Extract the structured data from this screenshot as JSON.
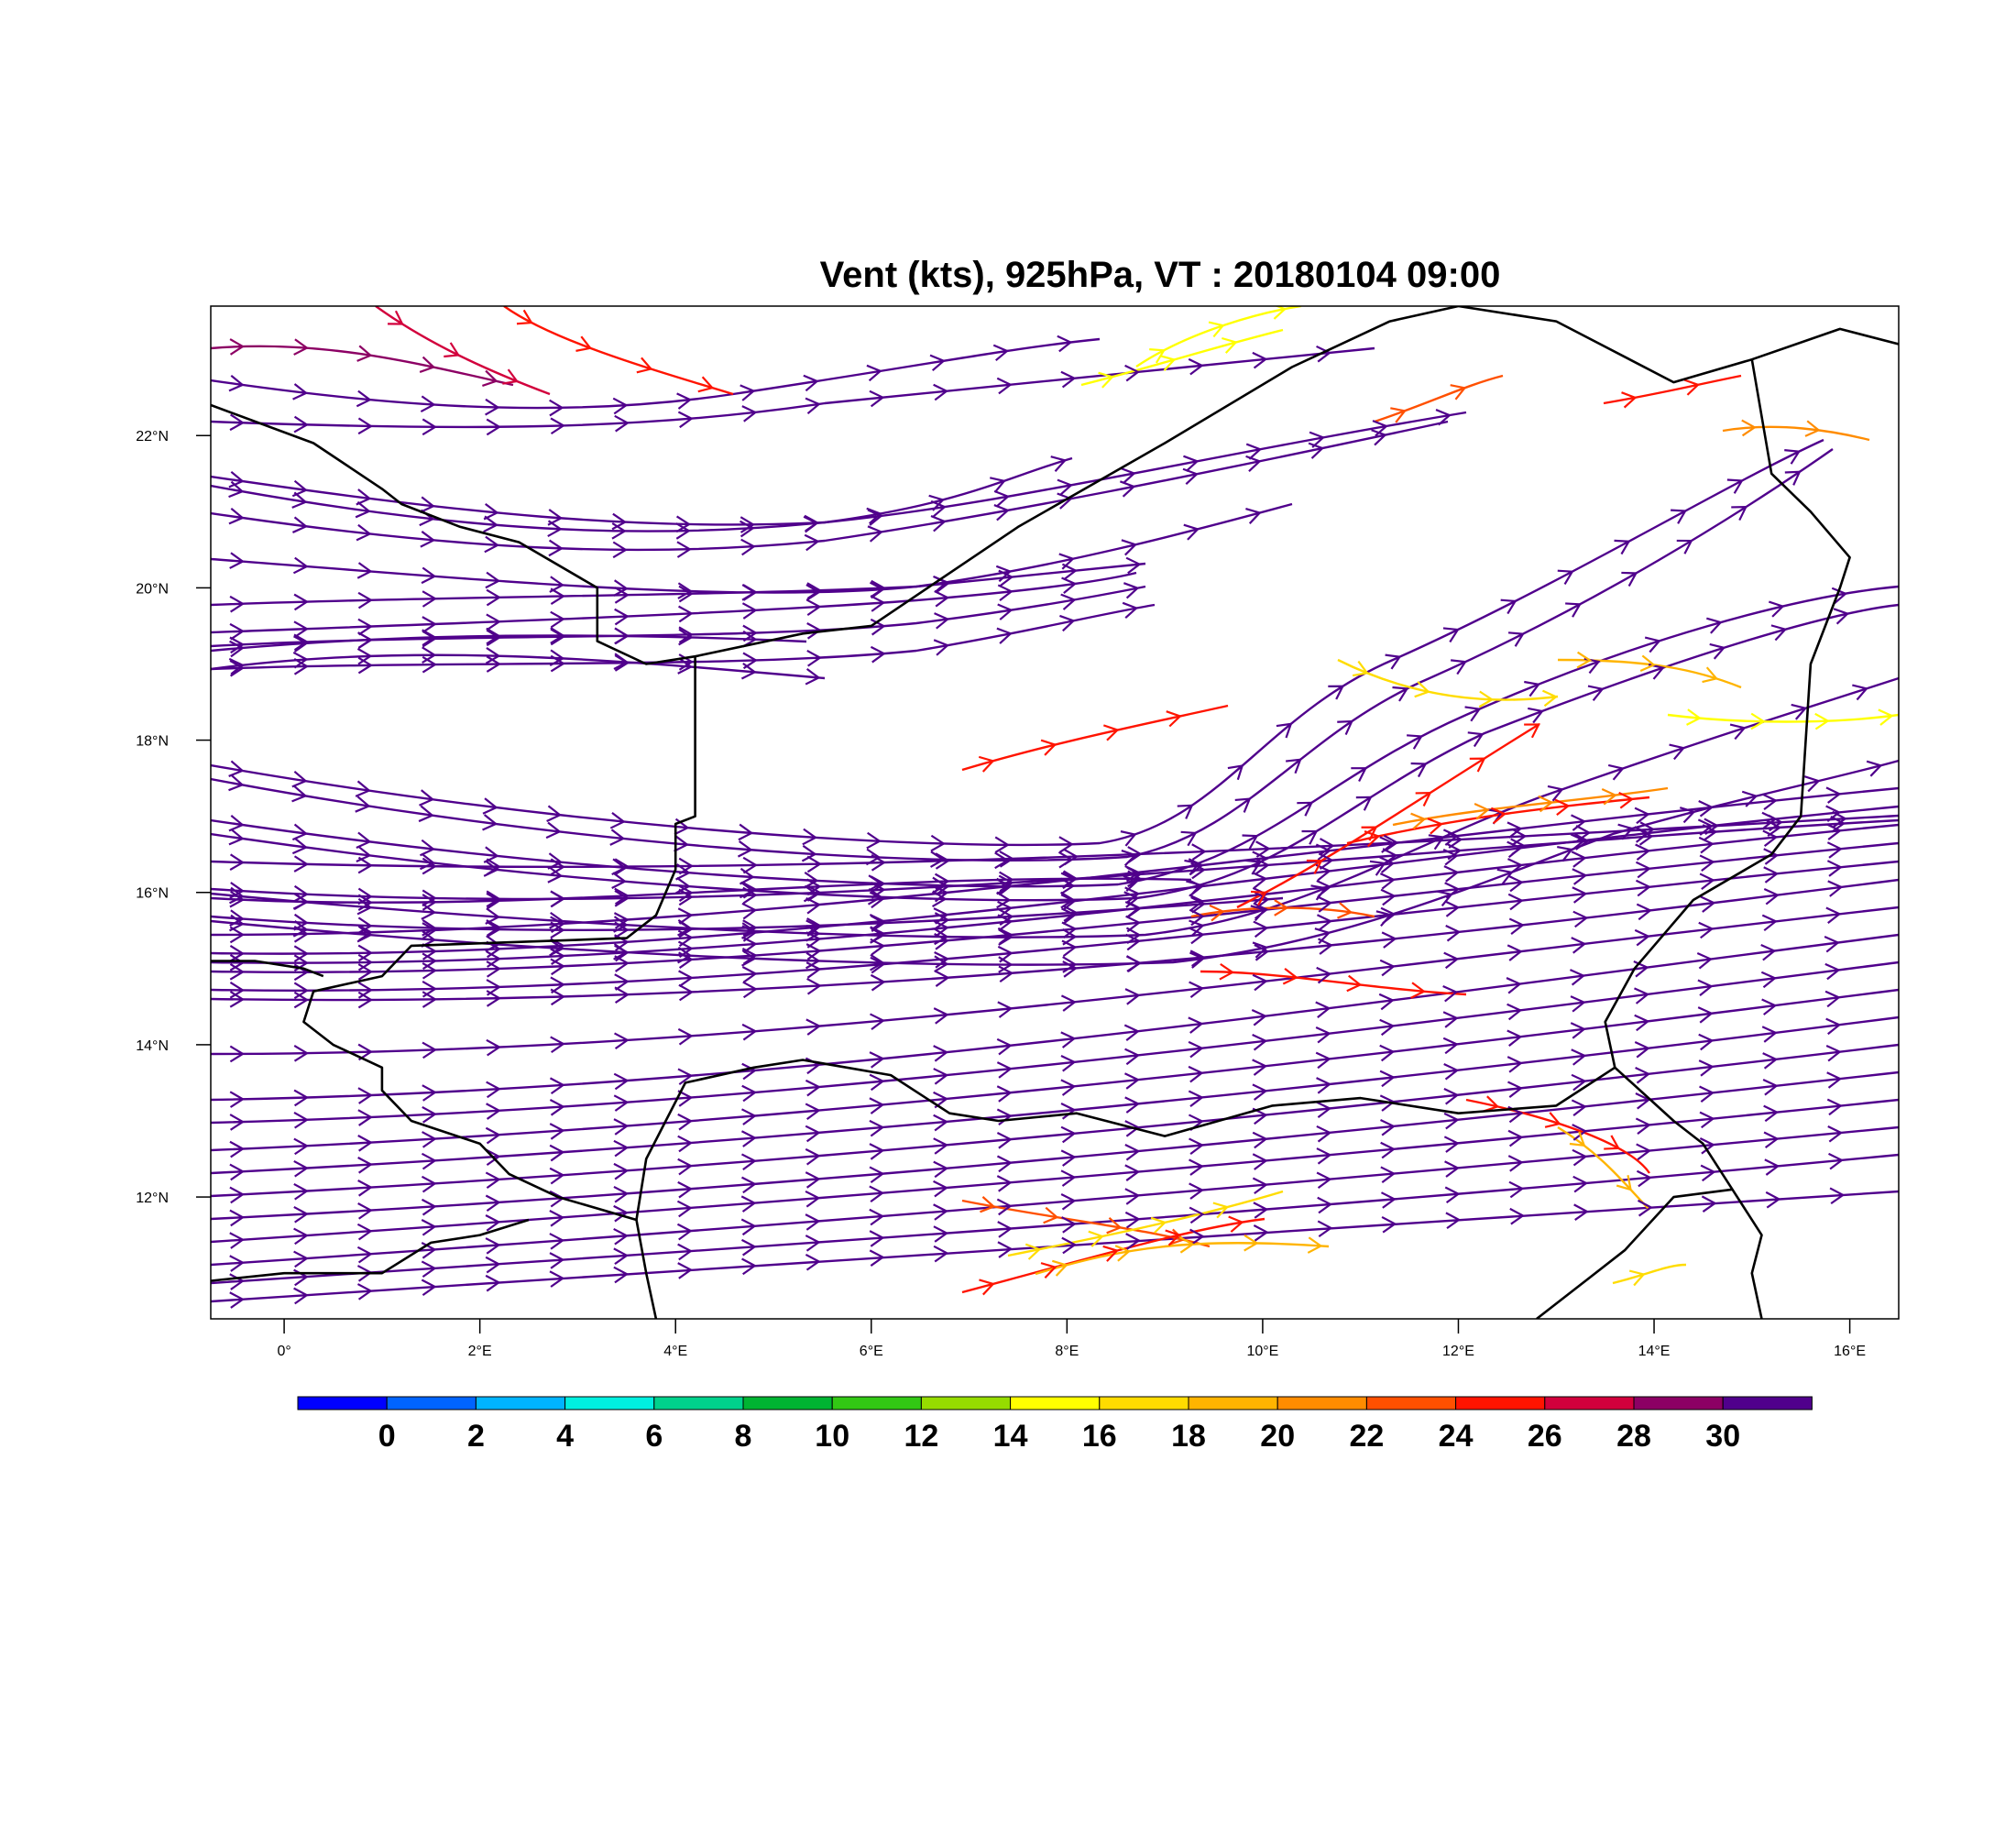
{
  "title": "Vent (kts), 925hPa, VT : 20180104  09:00",
  "map": {
    "lon_range": [
      -0.75,
      16.5
    ],
    "lat_range": [
      10.4,
      23.7
    ],
    "lon_ticks": [
      {
        "lon": 0,
        "label": "0°"
      },
      {
        "lon": 2,
        "label": "2°E"
      },
      {
        "lon": 4,
        "label": "4°E"
      },
      {
        "lon": 6,
        "label": "6°E"
      },
      {
        "lon": 8,
        "label": "8°E"
      },
      {
        "lon": 10,
        "label": "10°E"
      },
      {
        "lon": 12,
        "label": "12°E"
      },
      {
        "lon": 14,
        "label": "14°E"
      },
      {
        "lon": 16,
        "label": "16°E"
      }
    ],
    "lat_ticks": [
      {
        "lat": 22,
        "label": "22°N"
      },
      {
        "lat": 20,
        "label": "20°N"
      },
      {
        "lat": 18,
        "label": "18°N"
      },
      {
        "lat": 16,
        "label": "16°N"
      },
      {
        "lat": 14,
        "label": "14°N"
      },
      {
        "lat": 12,
        "label": "12°N"
      }
    ],
    "borders": [
      [
        [
          -0.75,
          22.4
        ],
        [
          0.3,
          21.9
        ],
        [
          1.0,
          21.3
        ],
        [
          1.2,
          21.1
        ],
        [
          1.8,
          20.8
        ],
        [
          2.4,
          20.6
        ],
        [
          3.2,
          20.0
        ],
        [
          3.2,
          19.3
        ],
        [
          3.7,
          19.0
        ],
        [
          4.2,
          19.1
        ],
        [
          5.3,
          19.4
        ],
        [
          6.0,
          19.5
        ],
        [
          7.5,
          20.8
        ],
        [
          9.0,
          21.9
        ],
        [
          10.3,
          22.9
        ],
        [
          11.3,
          23.5
        ],
        [
          12.0,
          23.7
        ]
      ],
      [
        [
          4.2,
          19.1
        ],
        [
          4.2,
          17.0
        ],
        [
          4.0,
          16.9
        ],
        [
          4.0,
          16.3
        ],
        [
          3.8,
          15.7
        ],
        [
          3.5,
          15.4
        ],
        [
          1.3,
          15.3
        ],
        [
          1.0,
          14.9
        ],
        [
          0.3,
          14.7
        ],
        [
          0.2,
          14.3
        ],
        [
          0.5,
          14.0
        ],
        [
          1.0,
          13.7
        ],
        [
          1.0,
          13.4
        ],
        [
          1.3,
          13.0
        ],
        [
          2.0,
          12.7
        ],
        [
          2.3,
          12.3
        ],
        [
          2.8,
          12.0
        ],
        [
          3.6,
          11.7
        ],
        [
          3.7,
          11.0
        ],
        [
          3.8,
          10.4
        ]
      ],
      [
        [
          -0.75,
          15.1
        ],
        [
          -0.3,
          15.1
        ],
        [
          0.2,
          15.0
        ],
        [
          0.4,
          14.9
        ]
      ],
      [
        [
          3.6,
          11.7
        ],
        [
          3.7,
          12.5
        ],
        [
          4.1,
          13.5
        ],
        [
          4.8,
          13.7
        ],
        [
          5.3,
          13.8
        ],
        [
          6.2,
          13.6
        ],
        [
          6.8,
          13.1
        ],
        [
          7.3,
          13.0
        ],
        [
          8.1,
          13.1
        ],
        [
          9.0,
          12.8
        ],
        [
          10.1,
          13.2
        ],
        [
          11.0,
          13.3
        ],
        [
          12.0,
          13.1
        ],
        [
          13.0,
          13.2
        ],
        [
          13.6,
          13.7
        ]
      ],
      [
        [
          12.0,
          23.7
        ],
        [
          13.0,
          23.5
        ],
        [
          14.2,
          22.7
        ],
        [
          15.0,
          23.0
        ],
        [
          15.9,
          23.4
        ],
        [
          16.5,
          23.2
        ]
      ],
      [
        [
          15.0,
          23.0
        ],
        [
          15.2,
          21.5
        ],
        [
          15.6,
          21.0
        ],
        [
          16.0,
          20.4
        ],
        [
          15.9,
          20.0
        ],
        [
          15.6,
          19.0
        ],
        [
          15.5,
          17.0
        ],
        [
          15.2,
          16.5
        ],
        [
          14.4,
          15.9
        ],
        [
          13.8,
          15.0
        ],
        [
          13.5,
          14.3
        ],
        [
          13.6,
          13.7
        ]
      ],
      [
        [
          13.6,
          13.7
        ],
        [
          14.2,
          13.0
        ],
        [
          14.5,
          12.7
        ],
        [
          14.8,
          12.1
        ],
        [
          15.1,
          11.5
        ],
        [
          15.0,
          11.0
        ],
        [
          15.1,
          10.4
        ]
      ],
      [
        [
          -0.75,
          10.9
        ],
        [
          0.0,
          11.0
        ],
        [
          1.0,
          11.0
        ],
        [
          1.5,
          11.4
        ],
        [
          2.0,
          11.5
        ],
        [
          2.5,
          11.7
        ]
      ],
      [
        [
          14.8,
          12.1
        ],
        [
          14.2,
          12.0
        ],
        [
          13.7,
          11.3
        ],
        [
          13.3,
          10.9
        ],
        [
          12.8,
          10.4
        ]
      ]
    ]
  },
  "colorbar": {
    "labels": [
      "0",
      "2",
      "4",
      "6",
      "8",
      "10",
      "12",
      "14",
      "16",
      "18",
      "20",
      "22",
      "24",
      "26",
      "28",
      "30"
    ],
    "colors": [
      "#0000ff",
      "#0064ff",
      "#00b4ff",
      "#00f0e0",
      "#00d28c",
      "#00b432",
      "#32c814",
      "#96dc00",
      "#ffff00",
      "#ffdc00",
      "#ffb400",
      "#ff8c00",
      "#ff5000",
      "#ff1400",
      "#d2003c",
      "#8c0064",
      "#50008c"
    ]
  }
}
